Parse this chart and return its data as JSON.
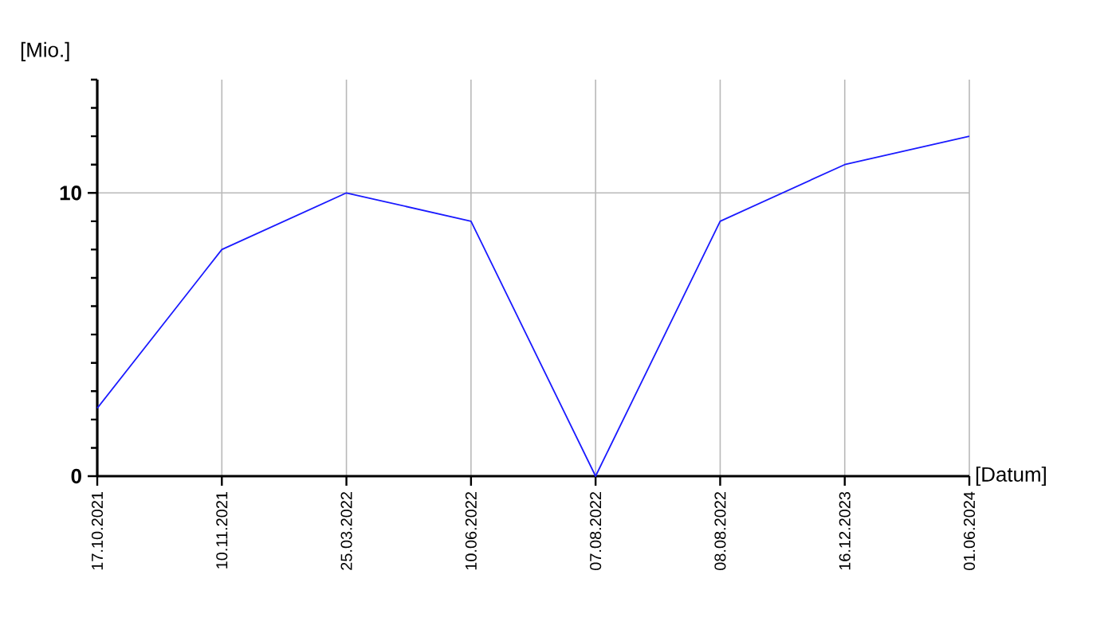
{
  "chart_data": {
    "type": "line",
    "xlabel": "[Datum]",
    "ylabel": "[Mio.]",
    "categories": [
      "17.10.2021",
      "10.11.2021",
      "25.03.2022",
      "10.06.2022",
      "07.08.2022",
      "08.08.2022",
      "16.12.2023",
      "01.06.2024"
    ],
    "series": [
      {
        "color": "#1a1aff",
        "values": [
          2.4,
          8,
          10,
          9,
          0,
          9,
          11,
          12
        ]
      }
    ],
    "ylim": [
      0,
      14
    ],
    "yticks": [
      0,
      {
        "value": 1,
        "label": null
      },
      {
        "value": 2,
        "label": null
      },
      {
        "value": 3,
        "label": null
      },
      {
        "value": 4,
        "label": null
      },
      {
        "value": 5,
        "label": null
      },
      {
        "value": 6,
        "label": null
      },
      {
        "value": 7,
        "label": null
      },
      {
        "value": 8,
        "label": null
      },
      {
        "value": 9,
        "label": null
      },
      10,
      {
        "value": 11,
        "label": null
      },
      {
        "value": 12,
        "label": null
      },
      {
        "value": 13,
        "label": null
      },
      {
        "value": 14,
        "label": null
      }
    ],
    "grid": true,
    "marker": "none",
    "line_style": "solid"
  }
}
